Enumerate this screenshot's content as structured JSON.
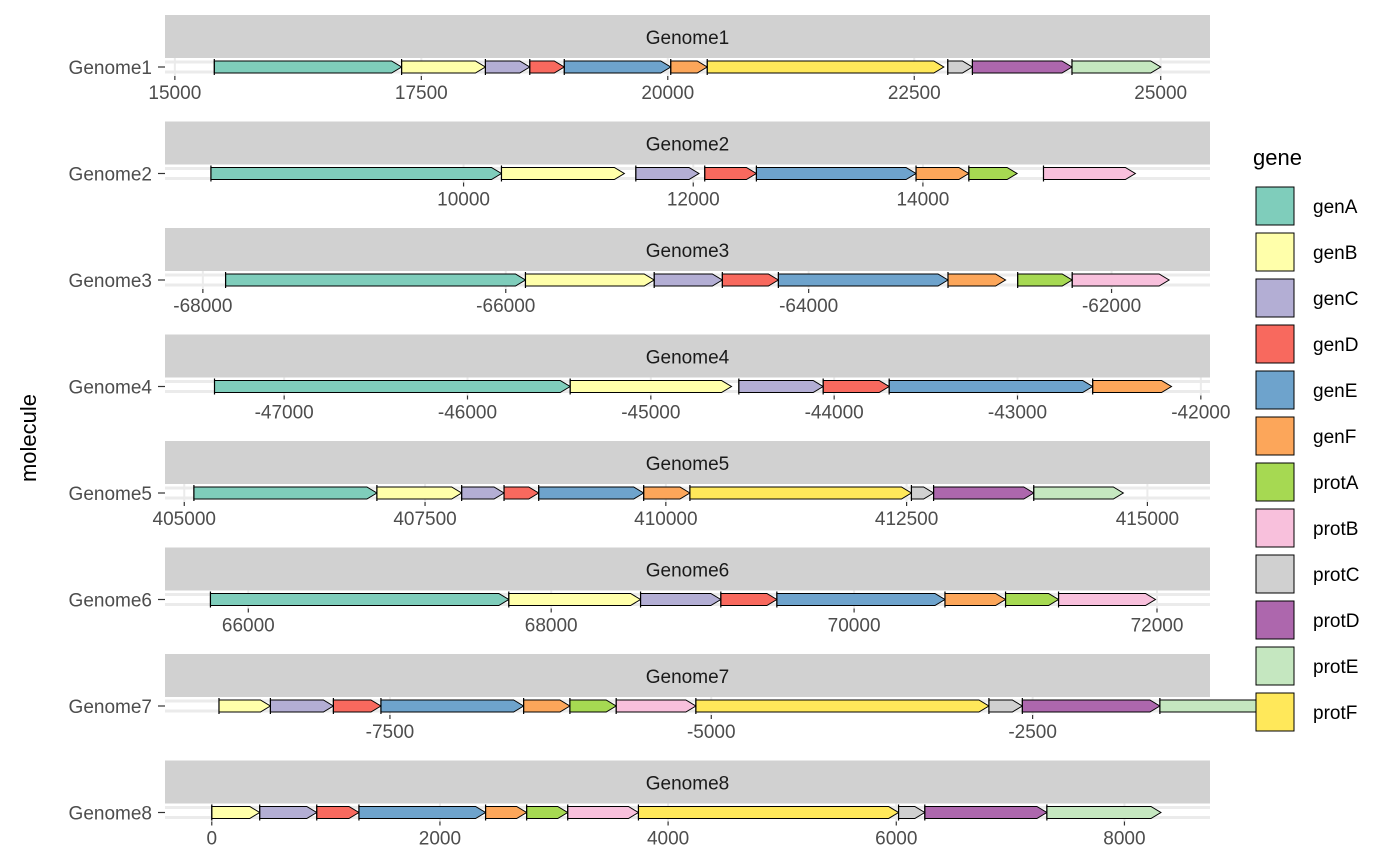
{
  "chart_data": {
    "type": "gene-arrow-map",
    "title": "",
    "ylabel": "molecule",
    "xlabel": "",
    "legend": {
      "title": "gene",
      "position": "right",
      "items": [
        {
          "name": "genA",
          "color": "#7fcdbb"
        },
        {
          "name": "genB",
          "color": "#ffffaa"
        },
        {
          "name": "genC",
          "color": "#b3aed4"
        },
        {
          "name": "genD",
          "color": "#f8695e"
        },
        {
          "name": "genE",
          "color": "#6ea3cc"
        },
        {
          "name": "genF",
          "color": "#fca65a"
        },
        {
          "name": "protA",
          "color": "#a6d952"
        },
        {
          "name": "protB",
          "color": "#f8c0dc"
        },
        {
          "name": "protC",
          "color": "#d0d0d0"
        },
        {
          "name": "protD",
          "color": "#ad67ad"
        },
        {
          "name": "protE",
          "color": "#c5e7c0"
        },
        {
          "name": "protF",
          "color": "#ffe85a"
        }
      ]
    },
    "panels": [
      {
        "molecule": "Genome1",
        "xlim": [
          14900,
          25500
        ],
        "ticks": [
          15000,
          17500,
          20000,
          22500,
          25000
        ],
        "tick_labels": [
          "15000",
          "17500",
          "20000",
          "22500",
          "25000"
        ],
        "genes": [
          {
            "gene": "genA",
            "start": 15400,
            "end": 17300
          },
          {
            "gene": "genB",
            "start": 17300,
            "end": 18150
          },
          {
            "gene": "genC",
            "start": 18150,
            "end": 18600
          },
          {
            "gene": "genD",
            "start": 18600,
            "end": 18950
          },
          {
            "gene": "genE",
            "start": 18950,
            "end": 20030
          },
          {
            "gene": "genF",
            "start": 20030,
            "end": 20400
          },
          {
            "gene": "protF",
            "start": 20400,
            "end": 22800
          },
          {
            "gene": "protC",
            "start": 22840,
            "end": 23090
          },
          {
            "gene": "protD",
            "start": 23090,
            "end": 24100
          },
          {
            "gene": "protE",
            "start": 24100,
            "end": 25000
          }
        ]
      },
      {
        "molecule": "Genome2",
        "xlim": [
          7400,
          16500
        ],
        "ticks": [
          10000,
          12000,
          14000
        ],
        "tick_labels": [
          "10000",
          "12000",
          "14000"
        ],
        "genes": [
          {
            "gene": "genA",
            "start": 7800,
            "end": 10330
          },
          {
            "gene": "genB",
            "start": 10330,
            "end": 11400
          },
          {
            "gene": "genC",
            "start": 11500,
            "end": 12050
          },
          {
            "gene": "genD",
            "start": 12100,
            "end": 12550
          },
          {
            "gene": "genE",
            "start": 12550,
            "end": 13940
          },
          {
            "gene": "genF",
            "start": 13940,
            "end": 14400
          },
          {
            "gene": "protA",
            "start": 14400,
            "end": 14820
          },
          {
            "gene": "protB",
            "start": 15050,
            "end": 15850
          }
        ]
      },
      {
        "molecule": "Genome3",
        "xlim": [
          -68250,
          -61350
        ],
        "ticks": [
          -68000,
          -66000,
          -64000,
          -62000
        ],
        "tick_labels": [
          "-68000",
          "-66000",
          "-64000",
          "-62000"
        ],
        "genes": [
          {
            "gene": "genA",
            "start": -67850,
            "end": -65870
          },
          {
            "gene": "genB",
            "start": -65870,
            "end": -65020
          },
          {
            "gene": "genC",
            "start": -65020,
            "end": -64570
          },
          {
            "gene": "genD",
            "start": -64570,
            "end": -64200
          },
          {
            "gene": "genE",
            "start": -64200,
            "end": -63080
          },
          {
            "gene": "genF",
            "start": -63080,
            "end": -62700
          },
          {
            "gene": "protA",
            "start": -62620,
            "end": -62260
          },
          {
            "gene": "protB",
            "start": -62260,
            "end": -61620
          }
        ]
      },
      {
        "molecule": "Genome4",
        "xlim": [
          -47650,
          -41950
        ],
        "ticks": [
          -47000,
          -46000,
          -45000,
          -44000,
          -43000,
          -42000
        ],
        "tick_labels": [
          "-47000",
          "-46000",
          "-45000",
          "-44000",
          "-43000",
          "-42000"
        ],
        "genes": [
          {
            "gene": "genA",
            "start": -47380,
            "end": -45440
          },
          {
            "gene": "genB",
            "start": -45440,
            "end": -44560
          },
          {
            "gene": "genC",
            "start": -44520,
            "end": -44060
          },
          {
            "gene": "genD",
            "start": -44060,
            "end": -43700
          },
          {
            "gene": "genE",
            "start": -43700,
            "end": -42590
          },
          {
            "gene": "genF",
            "start": -42590,
            "end": -42160
          }
        ]
      },
      {
        "molecule": "Genome5",
        "xlim": [
          404800,
          415650
        ],
        "ticks": [
          405000,
          407500,
          410000,
          412500,
          415000
        ],
        "tick_labels": [
          "405000",
          "407500",
          "410000",
          "412500",
          "415000"
        ],
        "genes": [
          {
            "gene": "genA",
            "start": 405100,
            "end": 407000
          },
          {
            "gene": "genB",
            "start": 407000,
            "end": 407880
          },
          {
            "gene": "genC",
            "start": 407880,
            "end": 408320
          },
          {
            "gene": "genD",
            "start": 408320,
            "end": 408680
          },
          {
            "gene": "genE",
            "start": 408680,
            "end": 409770
          },
          {
            "gene": "genF",
            "start": 409770,
            "end": 410250
          },
          {
            "gene": "protF",
            "start": 410250,
            "end": 412550
          },
          {
            "gene": "protC",
            "start": 412550,
            "end": 412780
          },
          {
            "gene": "protD",
            "start": 412780,
            "end": 413820
          },
          {
            "gene": "protE",
            "start": 413820,
            "end": 414750
          }
        ]
      },
      {
        "molecule": "Genome6",
        "xlim": [
          65450,
          72350
        ],
        "ticks": [
          66000,
          68000,
          70000,
          72000
        ],
        "tick_labels": [
          "66000",
          "68000",
          "70000",
          "72000"
        ],
        "genes": [
          {
            "gene": "genA",
            "start": 65750,
            "end": 67720
          },
          {
            "gene": "genB",
            "start": 67720,
            "end": 68590
          },
          {
            "gene": "genC",
            "start": 68590,
            "end": 69120
          },
          {
            "gene": "genD",
            "start": 69120,
            "end": 69490
          },
          {
            "gene": "genE",
            "start": 69490,
            "end": 70600
          },
          {
            "gene": "genF",
            "start": 70600,
            "end": 71000
          },
          {
            "gene": "protA",
            "start": 71000,
            "end": 71350
          },
          {
            "gene": "protB",
            "start": 71350,
            "end": 71990
          }
        ]
      },
      {
        "molecule": "Genome7",
        "xlim": [
          -9250,
          -1120
        ],
        "ticks": [
          -7500,
          -5000,
          -2500
        ],
        "tick_labels": [
          "-7500",
          "-5000",
          "-2500"
        ],
        "genes": [
          {
            "gene": "genB",
            "start": -8830,
            "end": -8430
          },
          {
            "gene": "genC",
            "start": -8430,
            "end": -7940
          },
          {
            "gene": "genD",
            "start": -7940,
            "end": -7570
          },
          {
            "gene": "genE",
            "start": -7570,
            "end": -6460
          },
          {
            "gene": "genF",
            "start": -6460,
            "end": -6100
          },
          {
            "gene": "protA",
            "start": -6100,
            "end": -5740
          },
          {
            "gene": "protB",
            "start": -5740,
            "end": -5120
          },
          {
            "gene": "protF",
            "start": -5120,
            "end": -2840
          },
          {
            "gene": "protC",
            "start": -2840,
            "end": -2580
          },
          {
            "gene": "protD",
            "start": -2580,
            "end": -1510
          },
          {
            "gene": "protE",
            "start": -1510,
            "end": -500
          }
        ]
      },
      {
        "molecule": "Genome8",
        "xlim": [
          -410,
          8750
        ],
        "ticks": [
          0,
          2000,
          4000,
          6000,
          8000
        ],
        "tick_labels": [
          "0",
          "2000",
          "4000",
          "6000",
          "8000"
        ],
        "genes": [
          {
            "gene": "genB",
            "start": 0,
            "end": 420
          },
          {
            "gene": "genC",
            "start": 420,
            "end": 920
          },
          {
            "gene": "genD",
            "start": 920,
            "end": 1290
          },
          {
            "gene": "genE",
            "start": 1290,
            "end": 2400
          },
          {
            "gene": "genF",
            "start": 2400,
            "end": 2760
          },
          {
            "gene": "protA",
            "start": 2760,
            "end": 3120
          },
          {
            "gene": "protB",
            "start": 3120,
            "end": 3740
          },
          {
            "gene": "protF",
            "start": 3740,
            "end": 6020
          },
          {
            "gene": "protC",
            "start": 6020,
            "end": 6250
          },
          {
            "gene": "protD",
            "start": 6250,
            "end": 7320
          },
          {
            "gene": "protE",
            "start": 7320,
            "end": 8320
          }
        ]
      }
    ]
  }
}
